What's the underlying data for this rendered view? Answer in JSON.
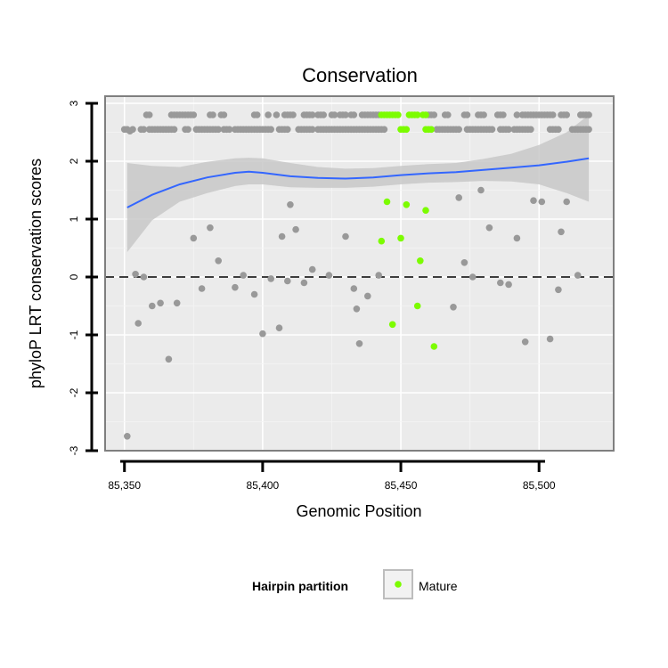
{
  "chart_data": {
    "type": "scatter",
    "title": "Conservation",
    "xlabel": "Genomic Position",
    "ylabel": "phyloP LRT conservation scores",
    "xlim": [
      85343,
      85527
    ],
    "ylim": [
      -3,
      3
    ],
    "x_ticks": [
      {
        "value": 85350,
        "label": "85,350"
      },
      {
        "value": 85400,
        "label": "85,400"
      },
      {
        "value": 85450,
        "label": "85,450"
      },
      {
        "value": 85500,
        "label": "85,500"
      }
    ],
    "y_ticks": [
      {
        "value": -3,
        "label": "-3"
      },
      {
        "value": -2,
        "label": "-2"
      },
      {
        "value": -1,
        "label": "-1"
      },
      {
        "value": 0,
        "label": "0"
      },
      {
        "value": 1,
        "label": "1"
      },
      {
        "value": 2,
        "label": "2"
      },
      {
        "value": 3,
        "label": "3"
      }
    ],
    "grid": true,
    "reference_line": {
      "y": 0,
      "style": "dashed"
    },
    "legend": {
      "title": "Hairpin partition",
      "placement": "bottom",
      "entries": [
        {
          "label": "Mature",
          "color": "#7cfc00"
        }
      ]
    },
    "colors": {
      "other": "#999999",
      "mature": "#7cfc00",
      "smooth": "#3366ff",
      "ribbon": "#c8c8c8",
      "panel": "#ebebeb"
    },
    "series": [
      {
        "name": "",
        "color": "#999999",
        "points": [
          [
            85351,
            -2.75
          ],
          [
            85351,
            2.55
          ],
          [
            85352,
            2.52
          ],
          [
            85354,
            0.05
          ],
          [
            85355,
            -0.8
          ],
          [
            85357,
            0.0
          ],
          [
            85360,
            -0.5
          ],
          [
            85363,
            -0.45
          ],
          [
            85366,
            -1.42
          ],
          [
            85369,
            -0.45
          ],
          [
            85375,
            0.67
          ],
          [
            85378,
            -0.2
          ],
          [
            85381,
            0.85
          ],
          [
            85384,
            0.28
          ],
          [
            85390,
            -0.18
          ],
          [
            85393,
            0.03
          ],
          [
            85397,
            -0.3
          ],
          [
            85400,
            -0.98
          ],
          [
            85403,
            -0.03
          ],
          [
            85406,
            -0.88
          ],
          [
            85407,
            0.7
          ],
          [
            85409,
            -0.07
          ],
          [
            85410,
            1.25
          ],
          [
            85412,
            0.82
          ],
          [
            85415,
            -0.1
          ],
          [
            85418,
            0.13
          ],
          [
            85424,
            0.03
          ],
          [
            85430,
            0.7
          ],
          [
            85433,
            -0.2
          ],
          [
            85434,
            -0.55
          ],
          [
            85435,
            -1.15
          ],
          [
            85438,
            -0.33
          ],
          [
            85442,
            0.03
          ],
          [
            85469,
            -0.52
          ],
          [
            85471,
            1.37
          ],
          [
            85473,
            0.25
          ],
          [
            85476,
            0.0
          ],
          [
            85479,
            1.5
          ],
          [
            85482,
            0.85
          ],
          [
            85486,
            -0.1
          ],
          [
            85489,
            -0.13
          ],
          [
            85492,
            0.67
          ],
          [
            85495,
            -1.12
          ],
          [
            85498,
            1.32
          ],
          [
            85501,
            1.3
          ],
          [
            85504,
            -1.07
          ],
          [
            85507,
            -0.22
          ],
          [
            85508,
            0.78
          ],
          [
            85510,
            1.3
          ],
          [
            85514,
            0.03
          ],
          [
            85358,
            2.8
          ],
          [
            85359,
            2.8
          ],
          [
            85367,
            2.8
          ],
          [
            85368,
            2.8
          ],
          [
            85369,
            2.8
          ],
          [
            85370,
            2.8
          ],
          [
            85371,
            2.8
          ],
          [
            85372,
            2.8
          ],
          [
            85373,
            2.8
          ],
          [
            85374,
            2.8
          ],
          [
            85375,
            2.8
          ],
          [
            85381,
            2.8
          ],
          [
            85382,
            2.8
          ],
          [
            85385,
            2.8
          ],
          [
            85386,
            2.8
          ],
          [
            85397,
            2.8
          ],
          [
            85398,
            2.8
          ],
          [
            85402,
            2.8
          ],
          [
            85405,
            2.8
          ],
          [
            85408,
            2.8
          ],
          [
            85409,
            2.8
          ],
          [
            85410,
            2.8
          ],
          [
            85411,
            2.8
          ],
          [
            85415,
            2.8
          ],
          [
            85416,
            2.8
          ],
          [
            85417,
            2.8
          ],
          [
            85418,
            2.8
          ],
          [
            85420,
            2.8
          ],
          [
            85421,
            2.8
          ],
          [
            85422,
            2.8
          ],
          [
            85425,
            2.8
          ],
          [
            85426,
            2.8
          ],
          [
            85428,
            2.8
          ],
          [
            85429,
            2.8
          ],
          [
            85430,
            2.8
          ],
          [
            85432,
            2.8
          ],
          [
            85433,
            2.8
          ],
          [
            85436,
            2.8
          ],
          [
            85437,
            2.8
          ],
          [
            85438,
            2.8
          ],
          [
            85439,
            2.8
          ],
          [
            85440,
            2.8
          ],
          [
            85441,
            2.8
          ],
          [
            85442,
            2.8
          ],
          [
            85460,
            2.8
          ],
          [
            85461,
            2.8
          ],
          [
            85462,
            2.8
          ],
          [
            85466,
            2.8
          ],
          [
            85467,
            2.8
          ],
          [
            85473,
            2.8
          ],
          [
            85474,
            2.8
          ],
          [
            85478,
            2.8
          ],
          [
            85479,
            2.8
          ],
          [
            85480,
            2.8
          ],
          [
            85485,
            2.8
          ],
          [
            85486,
            2.8
          ],
          [
            85487,
            2.8
          ],
          [
            85492,
            2.8
          ],
          [
            85494,
            2.8
          ],
          [
            85495,
            2.8
          ],
          [
            85496,
            2.8
          ],
          [
            85497,
            2.8
          ],
          [
            85498,
            2.8
          ],
          [
            85499,
            2.8
          ],
          [
            85500,
            2.8
          ],
          [
            85501,
            2.8
          ],
          [
            85502,
            2.8
          ],
          [
            85503,
            2.8
          ],
          [
            85504,
            2.8
          ],
          [
            85505,
            2.8
          ],
          [
            85508,
            2.8
          ],
          [
            85509,
            2.8
          ],
          [
            85510,
            2.8
          ],
          [
            85515,
            2.8
          ],
          [
            85516,
            2.8
          ],
          [
            85517,
            2.8
          ],
          [
            85518,
            2.8
          ],
          [
            85350,
            2.55
          ],
          [
            85353,
            2.55
          ],
          [
            85356,
            2.55
          ],
          [
            85357,
            2.55
          ],
          [
            85359,
            2.55
          ],
          [
            85360,
            2.55
          ],
          [
            85361,
            2.55
          ],
          [
            85362,
            2.55
          ],
          [
            85363,
            2.55
          ],
          [
            85364,
            2.55
          ],
          [
            85365,
            2.55
          ],
          [
            85366,
            2.55
          ],
          [
            85367,
            2.55
          ],
          [
            85368,
            2.55
          ],
          [
            85372,
            2.55
          ],
          [
            85373,
            2.55
          ],
          [
            85376,
            2.55
          ],
          [
            85377,
            2.55
          ],
          [
            85378,
            2.55
          ],
          [
            85379,
            2.55
          ],
          [
            85380,
            2.55
          ],
          [
            85381,
            2.55
          ],
          [
            85382,
            2.55
          ],
          [
            85383,
            2.55
          ],
          [
            85384,
            2.55
          ],
          [
            85386,
            2.55
          ],
          [
            85387,
            2.55
          ],
          [
            85388,
            2.55
          ],
          [
            85390,
            2.55
          ],
          [
            85391,
            2.55
          ],
          [
            85392,
            2.55
          ],
          [
            85393,
            2.55
          ],
          [
            85394,
            2.55
          ],
          [
            85395,
            2.55
          ],
          [
            85396,
            2.55
          ],
          [
            85397,
            2.55
          ],
          [
            85398,
            2.55
          ],
          [
            85399,
            2.55
          ],
          [
            85400,
            2.55
          ],
          [
            85401,
            2.55
          ],
          [
            85402,
            2.55
          ],
          [
            85403,
            2.55
          ],
          [
            85406,
            2.55
          ],
          [
            85407,
            2.55
          ],
          [
            85408,
            2.55
          ],
          [
            85409,
            2.55
          ],
          [
            85413,
            2.55
          ],
          [
            85414,
            2.55
          ],
          [
            85415,
            2.55
          ],
          [
            85416,
            2.55
          ],
          [
            85417,
            2.55
          ],
          [
            85418,
            2.55
          ],
          [
            85420,
            2.55
          ],
          [
            85421,
            2.55
          ],
          [
            85422,
            2.55
          ],
          [
            85423,
            2.55
          ],
          [
            85424,
            2.55
          ],
          [
            85425,
            2.55
          ],
          [
            85426,
            2.55
          ],
          [
            85427,
            2.55
          ],
          [
            85428,
            2.55
          ],
          [
            85429,
            2.55
          ],
          [
            85430,
            2.55
          ],
          [
            85431,
            2.55
          ],
          [
            85432,
            2.55
          ],
          [
            85433,
            2.55
          ],
          [
            85434,
            2.55
          ],
          [
            85435,
            2.55
          ],
          [
            85436,
            2.55
          ],
          [
            85437,
            2.55
          ],
          [
            85438,
            2.55
          ],
          [
            85439,
            2.55
          ],
          [
            85440,
            2.55
          ],
          [
            85441,
            2.55
          ],
          [
            85442,
            2.55
          ],
          [
            85443,
            2.55
          ],
          [
            85444,
            2.55
          ],
          [
            85463,
            2.55
          ],
          [
            85464,
            2.55
          ],
          [
            85465,
            2.55
          ],
          [
            85466,
            2.55
          ],
          [
            85467,
            2.55
          ],
          [
            85468,
            2.55
          ],
          [
            85469,
            2.55
          ],
          [
            85470,
            2.55
          ],
          [
            85471,
            2.55
          ],
          [
            85474,
            2.55
          ],
          [
            85475,
            2.55
          ],
          [
            85476,
            2.55
          ],
          [
            85477,
            2.55
          ],
          [
            85478,
            2.55
          ],
          [
            85479,
            2.55
          ],
          [
            85480,
            2.55
          ],
          [
            85481,
            2.55
          ],
          [
            85482,
            2.55
          ],
          [
            85483,
            2.55
          ],
          [
            85486,
            2.55
          ],
          [
            85487,
            2.55
          ],
          [
            85488,
            2.55
          ],
          [
            85489,
            2.55
          ],
          [
            85491,
            2.55
          ],
          [
            85492,
            2.55
          ],
          [
            85493,
            2.55
          ],
          [
            85494,
            2.55
          ],
          [
            85495,
            2.55
          ],
          [
            85496,
            2.55
          ],
          [
            85497,
            2.55
          ],
          [
            85504,
            2.55
          ],
          [
            85505,
            2.55
          ],
          [
            85506,
            2.55
          ],
          [
            85507,
            2.55
          ],
          [
            85512,
            2.55
          ],
          [
            85513,
            2.55
          ],
          [
            85514,
            2.55
          ],
          [
            85515,
            2.55
          ],
          [
            85516,
            2.55
          ],
          [
            85517,
            2.55
          ],
          [
            85518,
            2.55
          ]
        ]
      },
      {
        "name": "Mature",
        "color": "#7cfc00",
        "points": [
          [
            85443,
            0.62
          ],
          [
            85445,
            1.3
          ],
          [
            85447,
            -0.82
          ],
          [
            85450,
            0.67
          ],
          [
            85452,
            1.25
          ],
          [
            85456,
            -0.5
          ],
          [
            85457,
            0.28
          ],
          [
            85459,
            1.15
          ],
          [
            85462,
            -1.2
          ],
          [
            85443,
            2.8
          ],
          [
            85444,
            2.8
          ],
          [
            85445,
            2.8
          ],
          [
            85446,
            2.8
          ],
          [
            85447,
            2.8
          ],
          [
            85448,
            2.8
          ],
          [
            85449,
            2.8
          ],
          [
            85453,
            2.8
          ],
          [
            85454,
            2.8
          ],
          [
            85455,
            2.8
          ],
          [
            85456,
            2.8
          ],
          [
            85458,
            2.8
          ],
          [
            85459,
            2.8
          ],
          [
            85450,
            2.55
          ],
          [
            85451,
            2.55
          ],
          [
            85452,
            2.55
          ],
          [
            85459,
            2.55
          ],
          [
            85460,
            2.55
          ],
          [
            85461,
            2.55
          ]
        ]
      }
    ],
    "smooth": {
      "x": [
        85351,
        85360,
        85370,
        85380,
        85390,
        85395,
        85400,
        85410,
        85420,
        85430,
        85440,
        85450,
        85460,
        85470,
        85480,
        85490,
        85500,
        85510,
        85518
      ],
      "y": [
        1.2,
        1.42,
        1.6,
        1.72,
        1.8,
        1.82,
        1.8,
        1.74,
        1.71,
        1.7,
        1.72,
        1.76,
        1.79,
        1.81,
        1.85,
        1.89,
        1.93,
        1.99,
        2.05
      ],
      "ymin": [
        0.43,
        0.98,
        1.3,
        1.45,
        1.57,
        1.6,
        1.6,
        1.55,
        1.54,
        1.54,
        1.56,
        1.6,
        1.63,
        1.64,
        1.66,
        1.65,
        1.6,
        1.45,
        1.3
      ],
      "ymax": [
        1.97,
        1.92,
        1.9,
        1.99,
        2.05,
        2.06,
        2.05,
        1.97,
        1.9,
        1.87,
        1.88,
        1.92,
        1.95,
        1.97,
        2.04,
        2.13,
        2.28,
        2.5,
        2.8
      ]
    }
  }
}
